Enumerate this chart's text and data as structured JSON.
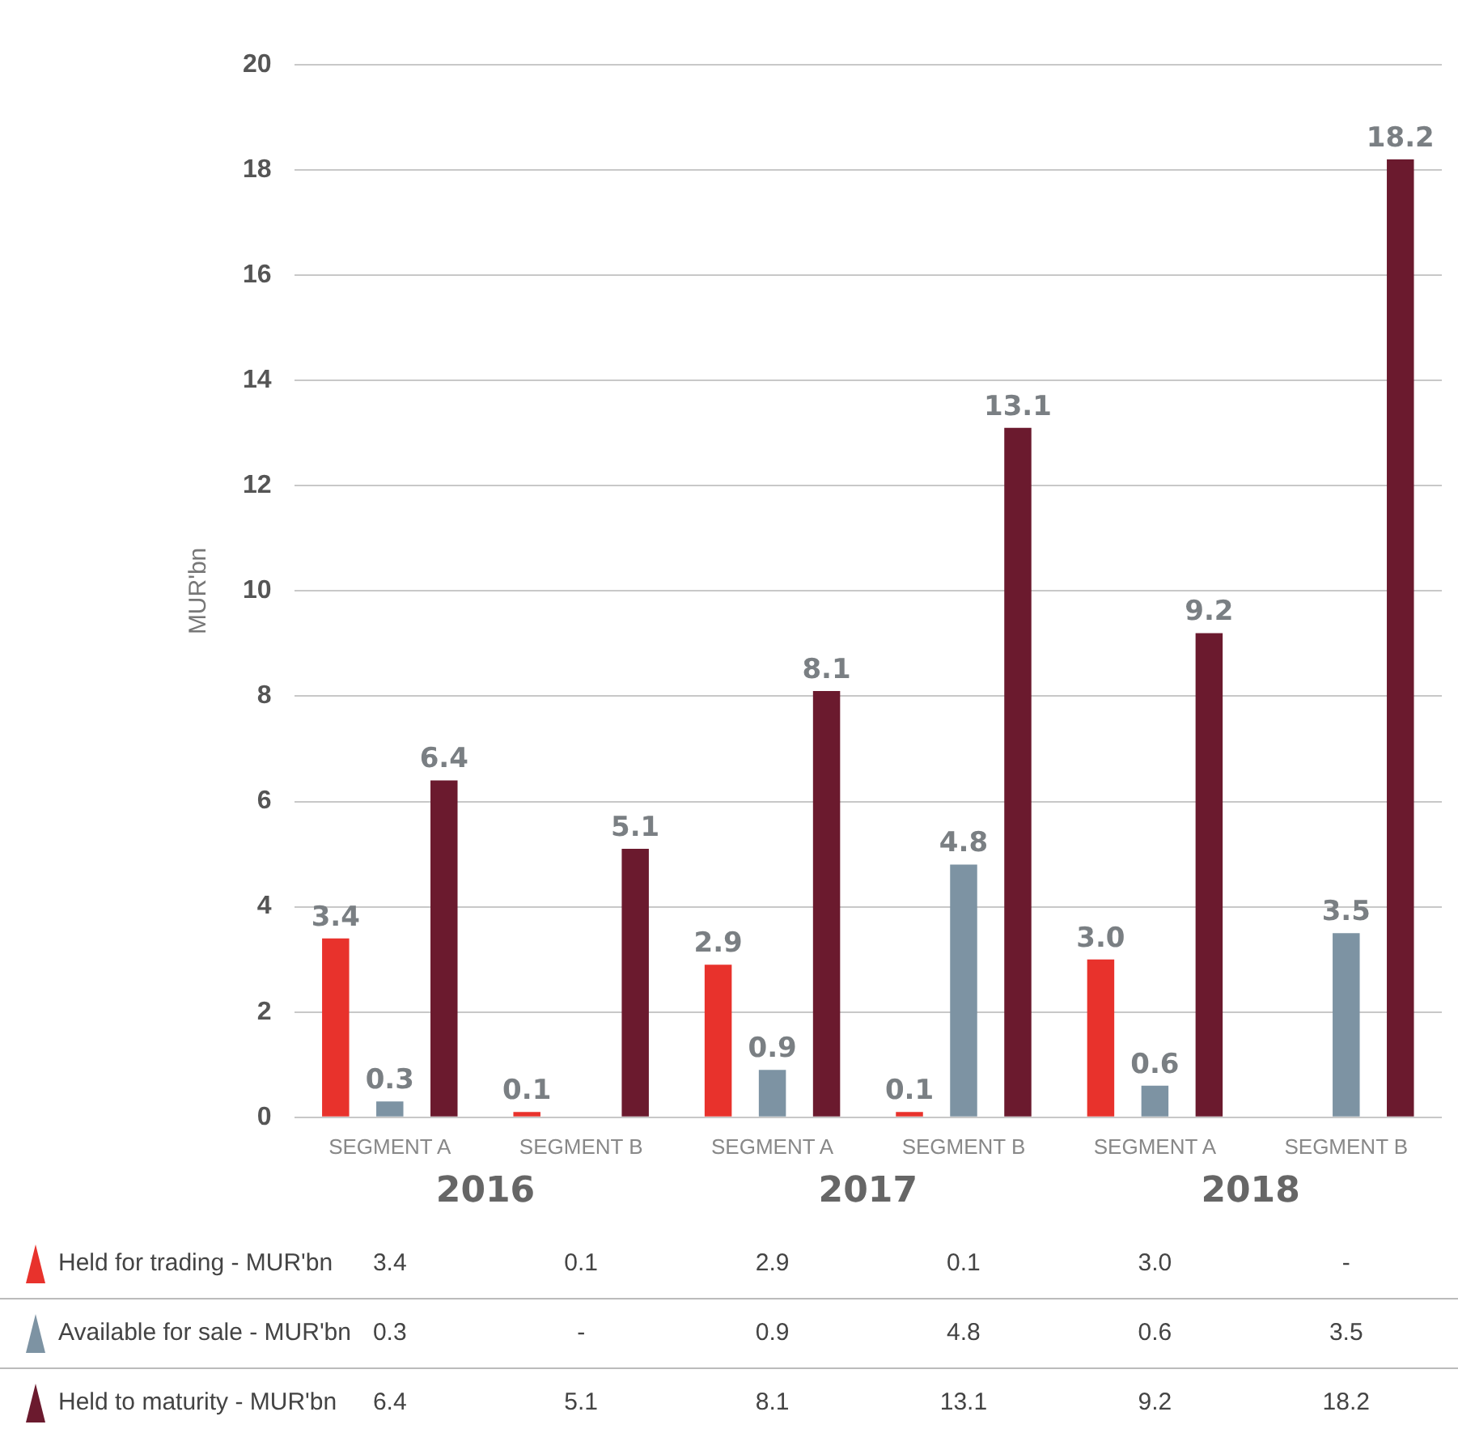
{
  "chart_data": {
    "type": "bar",
    "ylabel": "MUR'bn",
    "categories": [
      "SEGMENT A",
      "SEGMENT B",
      "SEGMENT A",
      "SEGMENT B",
      "SEGMENT A",
      "SEGMENT B"
    ],
    "annotations": [
      "2016",
      "2017",
      "2018"
    ],
    "series": [
      {
        "name": "Held for trading - MUR'bn",
        "color": "#e8322c",
        "values": [
          3.4,
          0.1,
          2.9,
          0.1,
          3.0,
          null
        ],
        "value_labels": [
          "3.4",
          "0.1",
          "2.9",
          "0.1",
          "3.0",
          "-"
        ]
      },
      {
        "name": "Available for sale - MUR'bn",
        "color": "#7d93a3",
        "values": [
          0.3,
          null,
          0.9,
          4.8,
          0.6,
          3.5
        ],
        "value_labels": [
          "0.3",
          "-",
          "0.9",
          "4.8",
          "0.6",
          "3.5"
        ]
      },
      {
        "name": "Held to maturity - MUR'bn",
        "color": "#6b1a2e",
        "values": [
          6.4,
          5.1,
          8.1,
          13.1,
          9.2,
          18.2
        ],
        "value_labels": [
          "6.4",
          "5.1",
          "8.1",
          "13.1",
          "9.2",
          "18.2"
        ]
      }
    ],
    "ylim": [
      0,
      20
    ],
    "yticks": [
      0,
      2,
      4,
      6,
      8,
      10,
      12,
      14,
      16,
      18,
      20
    ],
    "grid": "y",
    "legend": "bottom"
  }
}
